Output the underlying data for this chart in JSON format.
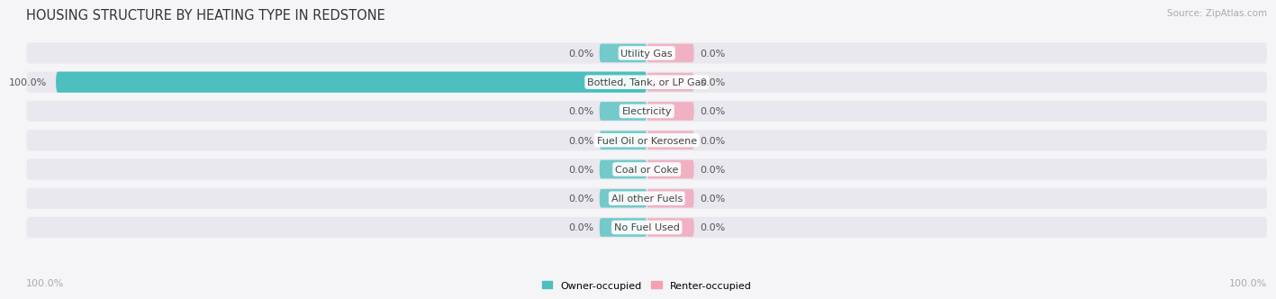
{
  "title": "HOUSING STRUCTURE BY HEATING TYPE IN REDSTONE",
  "source": "Source: ZipAtlas.com",
  "categories": [
    "Utility Gas",
    "Bottled, Tank, or LP Gas",
    "Electricity",
    "Fuel Oil or Kerosene",
    "Coal or Coke",
    "All other Fuels",
    "No Fuel Used"
  ],
  "owner_values": [
    0.0,
    100.0,
    0.0,
    0.0,
    0.0,
    0.0,
    0.0
  ],
  "renter_values": [
    0.0,
    0.0,
    0.0,
    0.0,
    0.0,
    0.0,
    0.0
  ],
  "owner_color": "#4dbfbf",
  "renter_color": "#f4a0b5",
  "bar_bg_color": "#e8e8ee",
  "bar_bg_color2": "#d8d8e0",
  "background_color": "#f5f5f8",
  "title_fontsize": 10.5,
  "label_fontsize": 8,
  "category_fontsize": 8,
  "source_fontsize": 7.5,
  "legend_owner": "Owner-occupied",
  "legend_renter": "Renter-occupied",
  "bottom_left_label": "100.0%",
  "bottom_right_label": "100.0%",
  "min_bar_width": 8.0,
  "xlim_left": -105,
  "xlim_right": 105
}
